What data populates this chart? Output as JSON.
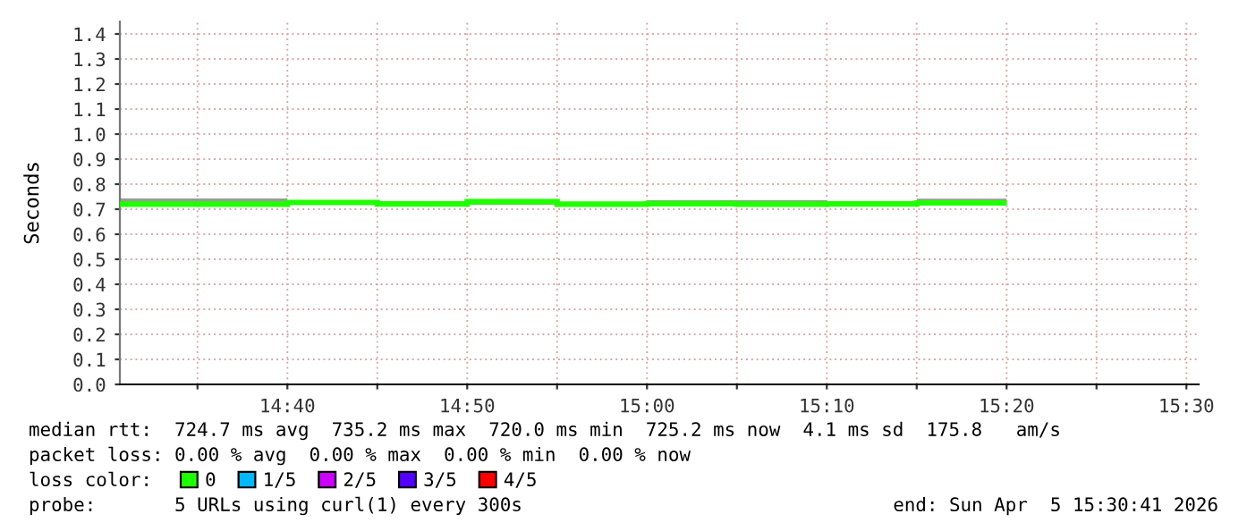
{
  "chart_data": {
    "type": "step",
    "ylabel": "Seconds",
    "x": [
      14.583333,
      14.666667,
      14.75,
      14.833333,
      14.916667,
      15.0,
      15.083333,
      15.166667,
      15.25,
      15.333333
    ],
    "series": [
      {
        "name": "0",
        "color": "#20ff00",
        "values": [
          0.72,
          0.72,
          0.727,
          0.721,
          0.73,
          0.72,
          0.722,
          0.72,
          0.721,
          0.725
        ],
        "lower": [
          0.717,
          0.717,
          0.722,
          0.718,
          0.717,
          0.717,
          0.718,
          0.718,
          0.718,
          0.718
        ],
        "upper": [
          0.743,
          0.743,
          0.73,
          0.722,
          0.735,
          0.724,
          0.736,
          0.736,
          0.724,
          0.742
        ]
      },
      {
        "name": "1/5",
        "color": "#00b8ff",
        "values": [
          null,
          null,
          null,
          null,
          null,
          null,
          null,
          null,
          null,
          null
        ]
      },
      {
        "name": "2/5",
        "color": "#cc00ff",
        "values": [
          null,
          null,
          null,
          null,
          null,
          null,
          null,
          null,
          null,
          null
        ]
      },
      {
        "name": "3/5",
        "color": "#5500ff",
        "values": [
          null,
          null,
          null,
          null,
          null,
          null,
          null,
          null,
          null,
          null
        ]
      },
      {
        "name": "4/5",
        "color": "#ff0000",
        "values": [
          null,
          null,
          null,
          null,
          null,
          null,
          null,
          null,
          null,
          null
        ]
      }
    ],
    "legend_title": "loss color:",
    "legend": "bottom",
    "xlim": [
      14.511389,
      15.511389
    ],
    "xticks": [
      {
        "value": 14.583333,
        "label": null
      },
      {
        "value": 14.666667,
        "label": "14:40"
      },
      {
        "value": 14.75,
        "label": null
      },
      {
        "value": 14.833333,
        "label": "14:50"
      },
      {
        "value": 14.916667,
        "label": null
      },
      {
        "value": 15.0,
        "label": "15:00"
      },
      {
        "value": 15.083333,
        "label": null
      },
      {
        "value": 15.166667,
        "label": "15:10"
      },
      {
        "value": 15.25,
        "label": null
      },
      {
        "value": 15.333333,
        "label": "15:20"
      },
      {
        "value": 15.416667,
        "label": null
      },
      {
        "value": 15.5,
        "label": "15:30"
      }
    ],
    "ylim": [
      0,
      1.45
    ],
    "yticks": [
      {
        "value": 0,
        "label": "0.0"
      },
      {
        "value": 0.1,
        "label": "0.1"
      },
      {
        "value": 0.2,
        "label": "0.2"
      },
      {
        "value": 0.3,
        "label": "0.3"
      },
      {
        "value": 0.4,
        "label": "0.4"
      },
      {
        "value": 0.5,
        "label": "0.5"
      },
      {
        "value": 0.6,
        "label": "0.6"
      },
      {
        "value": 0.7,
        "label": "0.7"
      },
      {
        "value": 0.8,
        "label": "0.8"
      },
      {
        "value": 0.9,
        "label": "0.9"
      },
      {
        "value": 1.0,
        "label": "1.0"
      },
      {
        "value": 1.1,
        "label": "1.1"
      },
      {
        "value": 1.2,
        "label": "1.2"
      },
      {
        "value": 1.3,
        "label": "1.3"
      },
      {
        "value": 1.4,
        "label": "1.4"
      }
    ],
    "grid": true,
    "annotations": [
      "median rtt:  724.7 ms avg  735.2 ms max  720.0 ms min  725.2 ms now  4.1 ms sd  175.8   am/s",
      "packet loss: 0.00 % avg  0.00 % max  0.00 % min  0.00 % now",
      "probe:       5 URLs using curl(1) every 300s",
      "end: Sun Apr  5 15:30:41 2026"
    ]
  }
}
